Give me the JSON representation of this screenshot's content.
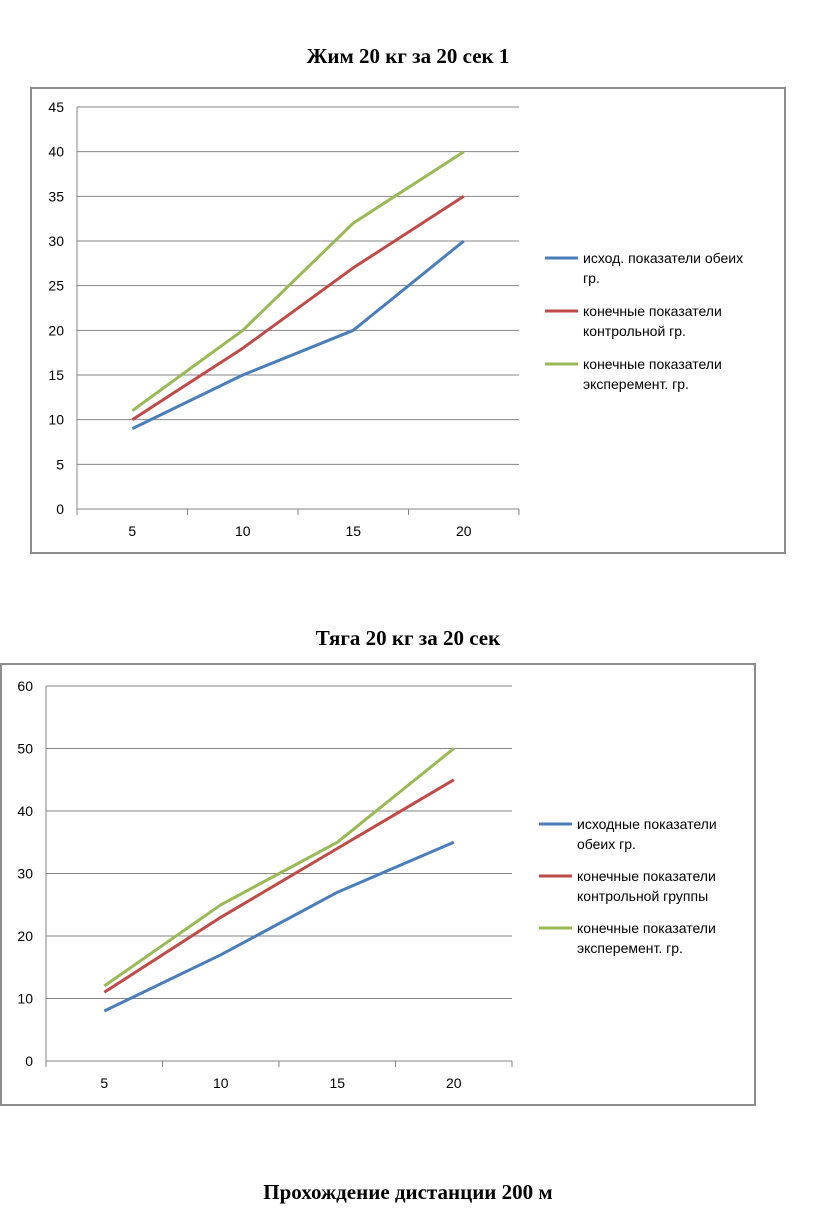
{
  "doc": {
    "title1": "Жим 20 кг за 20 сек 1",
    "title2": "Тяга 20 кг за 20 сек",
    "title3": "Прохождение дистанции 200 м"
  },
  "chart_data": [
    {
      "type": "line",
      "title": "",
      "x": [
        "5",
        "10",
        "15",
        "20"
      ],
      "ylim": [
        0,
        45
      ],
      "yticks": [
        "0",
        "5",
        "10",
        "15",
        "20",
        "25",
        "30",
        "35",
        "40",
        "45"
      ],
      "grid": true,
      "legend": "right",
      "series": [
        {
          "name_lines": [
            "исход. показатели обеих",
            "гр."
          ],
          "color": "#4a7ebb",
          "values": [
            9,
            15,
            20,
            30
          ]
        },
        {
          "name_lines": [
            "конечные показатели",
            "контрольной гр."
          ],
          "color": "#be4b48",
          "values": [
            10,
            18,
            27,
            35
          ]
        },
        {
          "name_lines": [
            "конечные показатели",
            "эксперемент. гр."
          ],
          "color": "#98b954",
          "values": [
            11,
            20,
            32,
            40
          ]
        }
      ]
    },
    {
      "type": "line",
      "title": "",
      "x": [
        "5",
        "10",
        "15",
        "20"
      ],
      "ylim": [
        0,
        60
      ],
      "yticks": [
        "0",
        "10",
        "20",
        "30",
        "40",
        "50",
        "60"
      ],
      "grid": true,
      "legend": "right",
      "series": [
        {
          "name_lines": [
            "исходные показатели",
            "обеих гр."
          ],
          "color": "#4a7ebb",
          "values": [
            8,
            17,
            27,
            35
          ]
        },
        {
          "name_lines": [
            "конечные показатели",
            "контрольной группы"
          ],
          "color": "#be4b48",
          "values": [
            11,
            23,
            34,
            45
          ]
        },
        {
          "name_lines": [
            "конечные показатели",
            "эксперемент. гр."
          ],
          "color": "#98b954",
          "values": [
            12,
            25,
            35,
            50
          ]
        }
      ]
    }
  ]
}
